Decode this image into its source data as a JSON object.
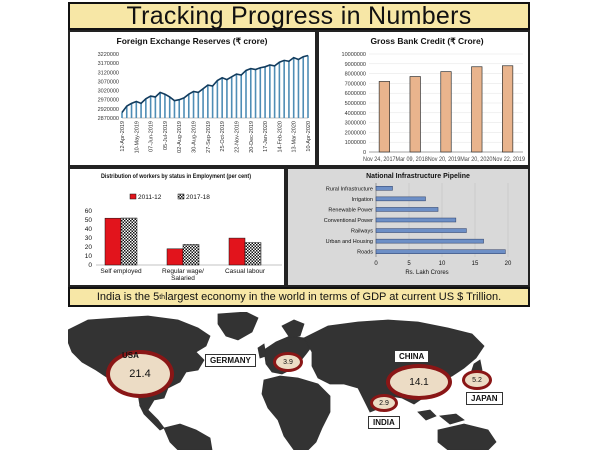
{
  "header": {
    "title": "Tracking Progress in Numbers"
  },
  "footer": {
    "text_before": "India is the 5",
    "superscript": "th",
    "text_after": " largest economy in the world in terms of GDP at current US $ Trillion."
  },
  "colors": {
    "banner": "#f7e7a6",
    "forex_line": "#1d6b99",
    "credit_bar": "#e9b48d",
    "workers_2011": "#e2141c",
    "workers_2017": "#ffffff",
    "pipeline_bar": "#6d8fc6",
    "pipeline_bg": "#d9d9d9",
    "bubble_fill": "#ecdcc5",
    "bubble_stroke": "#8a1616",
    "map_land": "#333333"
  },
  "chart_data": [
    {
      "id": "forex",
      "type": "area",
      "title": "Foreign Exchange Reserves (₹ crore)",
      "ylim": [
        2870000,
        3220000
      ],
      "y_ticks": [
        "3220000",
        "3170000",
        "3120000",
        "3070000",
        "3020000",
        "2970000",
        "2920000",
        "2870000"
      ],
      "x_ticks": [
        "12-Apr-2019",
        "10-May-2019",
        "07-Jun-2019",
        "05-Jul-2019",
        "02-Aug-2019",
        "30-Aug-2019",
        "27-Sep-2019",
        "25-Oct-2019",
        "22-Nov-2019",
        "20-Dec-2019",
        "17-Jan-2020",
        "14-Feb-2020",
        "13-Mar-2020",
        "10-Apr-2020"
      ],
      "values": [
        2900000,
        2935000,
        2950000,
        2960000,
        2950000,
        2975000,
        2990000,
        2985000,
        3010000,
        3000000,
        2985000,
        2965000,
        2970000,
        2980000,
        3000000,
        3015000,
        3010000,
        3030000,
        3050000,
        3045000,
        3075000,
        3090000,
        3080000,
        3095000,
        3110000,
        3105000,
        3130000,
        3140000,
        3135000,
        3145000,
        3150000,
        3160000,
        3155000,
        3175000,
        3185000,
        3180000,
        3200000,
        3190000,
        3205000,
        3212000
      ]
    },
    {
      "id": "credit",
      "type": "bar",
      "title": "Gross Bank Credit (₹ Crore)",
      "ylim": [
        0,
        10000000
      ],
      "y_ticks": [
        "10000000",
        "9000000",
        "8000000",
        "7000000",
        "6000000",
        "5000000",
        "4000000",
        "3000000",
        "2000000",
        "1000000",
        "0"
      ],
      "categories": [
        "Nov 24, 2017",
        "Mar 09, 2018",
        "Nov 20, 2019",
        "Mar 20, 2020",
        "Nov 22, 2019"
      ],
      "x_label_text": "Nov 24, 2017Mar 09, 2018Nov 20, 2019Mar 20, 2020Nov 22, 2019",
      "values": [
        7200000,
        7700000,
        8200000,
        8700000,
        8800000
      ]
    },
    {
      "id": "workers",
      "type": "bar",
      "title": "Distribution of workers by status in Employment (per cent)",
      "ylim": [
        0,
        60
      ],
      "y_ticks": [
        "60",
        "50",
        "40",
        "30",
        "20",
        "10",
        "0"
      ],
      "categories": [
        "Self employed",
        "Regular wage/ Salaried",
        "Casual labour"
      ],
      "category_lines": [
        [
          "Self employed"
        ],
        [
          "Regular wage/",
          "Salaried"
        ],
        [
          "Casual labour"
        ]
      ],
      "series": [
        {
          "name": "2011-12",
          "values": [
            52,
            18,
            29.9
          ]
        },
        {
          "name": "2017-18",
          "values": [
            52.2,
            22.8,
            24.9
          ]
        }
      ]
    },
    {
      "id": "pipeline",
      "type": "bar",
      "title": "National Infrastructure Pipeline",
      "orientation": "horizontal",
      "xlim": [
        0,
        20
      ],
      "x_ticks": [
        "0",
        "5",
        "10",
        "15",
        "20"
      ],
      "xlabel": "Rs. Lakh Crores",
      "categories": [
        "Rural Infrastructure",
        "Irrigation",
        "Renewable Power",
        "Conventional Power",
        "Railways",
        "Urban and Housing",
        "Roads"
      ],
      "values": [
        2.5,
        7.5,
        9.4,
        12.1,
        13.7,
        16.3,
        19.6
      ]
    },
    {
      "id": "gdp",
      "type": "scatter",
      "title": "",
      "categories": [
        "USA",
        "GERMANY",
        "CHINA",
        "JAPAN",
        "INDIA"
      ],
      "values": [
        21.4,
        3.9,
        14.1,
        5.2,
        2.9
      ],
      "value_labels": [
        "21.4",
        "3.9",
        "14.1",
        "5.2",
        "2.9"
      ]
    }
  ]
}
